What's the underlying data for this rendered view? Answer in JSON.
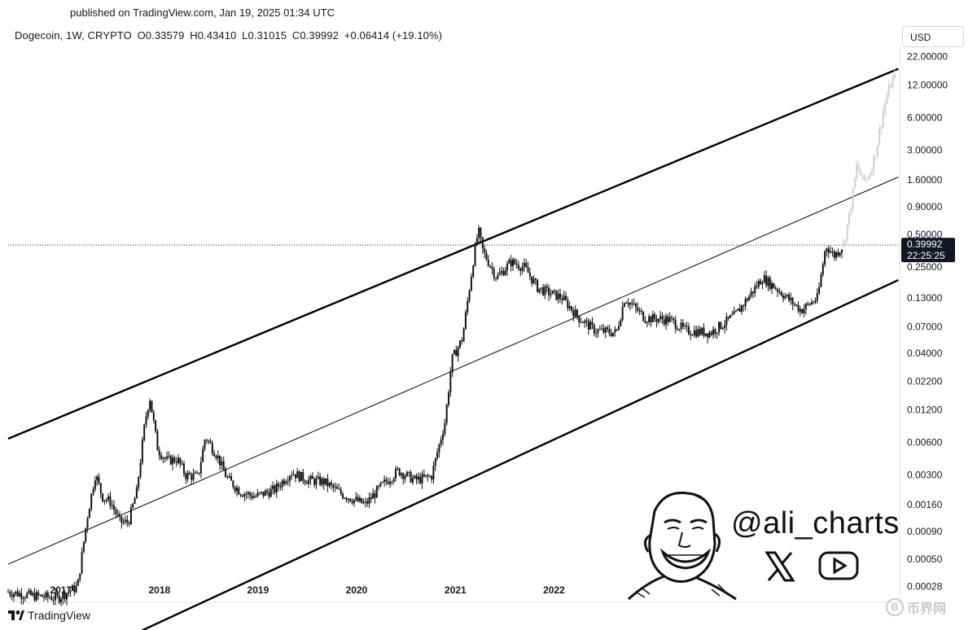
{
  "header": {
    "published": "published on TradingView.com, Jan 19, 2025 01:34 UTC"
  },
  "legend": {
    "symbol": "Dogecoin, 1W, CRYPTO",
    "open": "O0.33579",
    "high": "H0.43410",
    "low": "L0.31015",
    "close": "C0.39992",
    "change": "+0.06414 (+19.10%)"
  },
  "currency_button": "USD",
  "price_badge": {
    "price": "0.39992",
    "countdown": "22:25:25"
  },
  "footer": {
    "brand": "TradingView",
    "watermark_text": "币界网",
    "watermark_glyph": "B"
  },
  "branding": {
    "handle": "@ali_charts",
    "icons": [
      "x-logo-icon",
      "youtube-icon",
      "face-illustration"
    ]
  },
  "colors": {
    "candles": "#111111",
    "projection": "#cfcfcf",
    "channel": "#000000",
    "badge_bg": "#131722"
  },
  "chart_data": {
    "type": "candlestick",
    "scale": "log",
    "ylim": [
      0.0002,
      26
    ],
    "xlim": [
      "2016-08-01",
      "2025-08-15"
    ],
    "y_ticks": [
      "22.00000",
      "12.00000",
      "6.00000",
      "3.00000",
      "1.60000",
      "0.90000",
      "0.50000",
      "0.25000",
      "0.13000",
      "0.07000",
      "0.04000",
      "0.02200",
      "0.01200",
      "0.00600",
      "0.00300",
      "0.00160",
      "0.00090",
      "0.00050",
      "0.00028"
    ],
    "x_ticks": [
      {
        "label": "2017",
        "date": "2017-01-01"
      },
      {
        "label": "2018",
        "date": "2018-01-01"
      },
      {
        "label": "2019",
        "date": "2019-01-01"
      },
      {
        "label": "2020",
        "date": "2020-01-01"
      },
      {
        "label": "2021",
        "date": "2021-01-01"
      },
      {
        "label": "2022",
        "date": "2022-01-01"
      }
    ],
    "current_price": 0.39992,
    "price_path": [
      [
        "2016-08-01",
        0.00025
      ],
      [
        "2016-11-01",
        0.00023
      ],
      [
        "2017-02-01",
        0.00022
      ],
      [
        "2017-04-15",
        0.00028
      ],
      [
        "2017-05-20",
        0.0012
      ],
      [
        "2017-06-20",
        0.0031
      ],
      [
        "2017-07-15",
        0.0019
      ],
      [
        "2017-08-15",
        0.0017
      ],
      [
        "2017-09-20",
        0.0011
      ],
      [
        "2017-10-20",
        0.0011
      ],
      [
        "2017-11-20",
        0.0021
      ],
      [
        "2017-12-20",
        0.009
      ],
      [
        "2018-01-07",
        0.016
      ],
      [
        "2018-02-06",
        0.0052
      ],
      [
        "2018-03-10",
        0.0041
      ],
      [
        "2018-04-20",
        0.0042
      ],
      [
        "2018-05-20",
        0.003
      ],
      [
        "2018-07-05",
        0.0029
      ],
      [
        "2018-08-01",
        0.0068
      ],
      [
        "2018-09-15",
        0.0045
      ],
      [
        "2018-10-20",
        0.0028
      ],
      [
        "2018-12-10",
        0.0021
      ],
      [
        "2019-02-01",
        0.0019
      ],
      [
        "2019-04-15",
        0.0022
      ],
      [
        "2019-06-15",
        0.0032
      ],
      [
        "2019-08-15",
        0.0027
      ],
      [
        "2019-10-15",
        0.0026
      ],
      [
        "2019-12-20",
        0.002
      ],
      [
        "2020-03-15",
        0.0016
      ],
      [
        "2020-05-15",
        0.0024
      ],
      [
        "2020-07-15",
        0.0033
      ],
      [
        "2020-09-15",
        0.0027
      ],
      [
        "2020-11-15",
        0.0029
      ],
      [
        "2021-01-05",
        0.0095
      ],
      [
        "2021-01-30",
        0.035
      ],
      [
        "2021-03-10",
        0.055
      ],
      [
        "2021-04-20",
        0.3
      ],
      [
        "2021-05-08",
        0.55
      ],
      [
        "2021-05-25",
        0.35
      ],
      [
        "2021-07-15",
        0.2
      ],
      [
        "2021-09-05",
        0.28
      ],
      [
        "2021-10-25",
        0.25
      ],
      [
        "2021-12-15",
        0.16
      ],
      [
        "2022-03-15",
        0.13
      ],
      [
        "2022-05-15",
        0.085
      ],
      [
        "2022-07-15",
        0.065
      ],
      [
        "2022-10-01",
        0.062
      ],
      [
        "2022-11-01",
        0.13
      ],
      [
        "2023-01-15",
        0.085
      ],
      [
        "2023-04-15",
        0.082
      ],
      [
        "2023-06-15",
        0.065
      ],
      [
        "2023-09-15",
        0.062
      ],
      [
        "2023-12-15",
        0.09
      ],
      [
        "2024-03-25",
        0.2
      ],
      [
        "2024-05-15",
        0.16
      ],
      [
        "2024-08-15",
        0.1
      ],
      [
        "2024-10-15",
        0.13
      ],
      [
        "2024-11-15",
        0.4
      ],
      [
        "2024-12-15",
        0.32
      ],
      [
        "2025-01-19",
        0.39992
      ]
    ],
    "projection_path": [
      [
        "2025-01-19",
        0.4
      ],
      [
        "2025-02-15",
        0.9
      ],
      [
        "2025-03-10",
        2.2
      ],
      [
        "2025-04-01",
        1.55
      ],
      [
        "2025-04-25",
        1.8
      ],
      [
        "2025-05-20",
        3.0
      ],
      [
        "2025-06-15",
        7.0
      ],
      [
        "2025-07-10",
        12.0
      ],
      [
        "2025-08-01",
        15.0
      ]
    ],
    "channel_lines": [
      {
        "name": "upper",
        "points": [
          [
            "2016-08-01",
            0.0065
          ],
          [
            "2025-08-10",
            17.0
          ]
        ]
      },
      {
        "name": "middle",
        "points": [
          [
            "2016-08-01",
            0.00045
          ],
          [
            "2025-08-10",
            1.7
          ]
        ]
      },
      {
        "name": "lower",
        "points": [
          [
            "2017-12-10",
            0.00011
          ],
          [
            "2025-08-10",
            0.19
          ]
        ]
      }
    ]
  }
}
